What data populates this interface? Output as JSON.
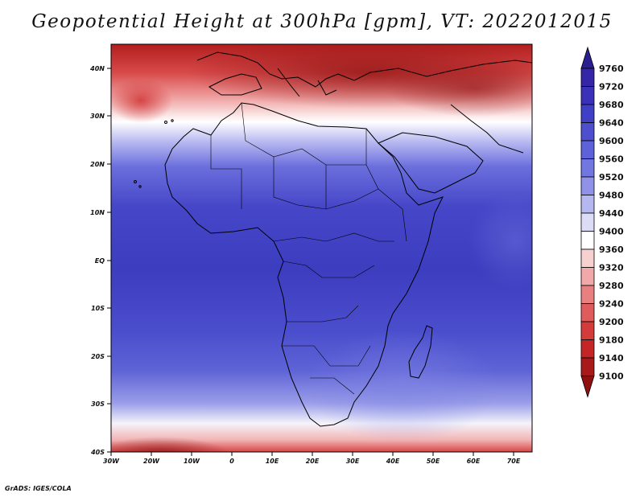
{
  "title": "Geopotential Height at 300hPa [gpm], VT: 2022012015",
  "credit": "GrADS: IGES/COLA",
  "map": {
    "region": "Africa",
    "lon_range": [
      -30,
      76
    ],
    "lat_range": [
      -40,
      45
    ],
    "x_ticks": [
      "30W",
      "20W",
      "10W",
      "0",
      "10E",
      "20E",
      "30E",
      "40E",
      "50E",
      "60E",
      "70E"
    ],
    "y_ticks": [
      "40S",
      "30S",
      "20S",
      "10S",
      "EQ",
      "10N",
      "20N",
      "30N",
      "40N"
    ]
  },
  "colorbar": {
    "levels": [
      9760,
      9720,
      9680,
      9640,
      9600,
      9560,
      9520,
      9480,
      9440,
      9400,
      9360,
      9320,
      9280,
      9240,
      9200,
      9180,
      9140,
      9100
    ],
    "colors": [
      "#2a1f8f",
      "#3526a8",
      "#3b31b8",
      "#4040c6",
      "#4d4fcf",
      "#5d62d8",
      "#7276e0",
      "#8f92e8",
      "#b5b7f0",
      "#dcdcf7",
      "#ffffff",
      "#f7d0d0",
      "#f0a8a8",
      "#e88080",
      "#df5c5c",
      "#d43b3b",
      "#c42626",
      "#a81a1a",
      "#8f1010"
    ]
  }
}
